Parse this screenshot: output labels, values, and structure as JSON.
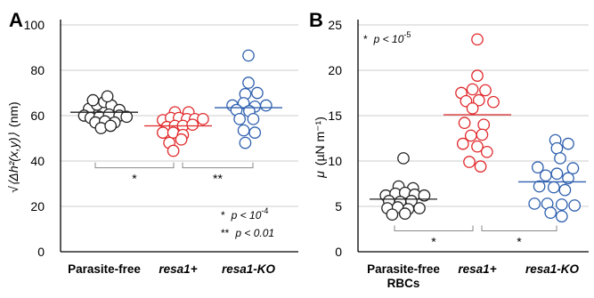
{
  "colors": {
    "black": "#222222",
    "red": "#e0282b",
    "blue": "#2e5fae",
    "grid": "#bbbbbb",
    "bracket": "#8a8a8a"
  },
  "chart_data": [
    {
      "type": "scatter",
      "panel": "A",
      "ylabel_text": "(nm)",
      "ylabel_math": "√⟨Δh²(x,y)⟩",
      "ylim": [
        0,
        100
      ],
      "yticks": [
        "0",
        "20",
        "40",
        "60",
        "80",
        "100"
      ],
      "categories": [
        "Parasite-free RBCs",
        "resa1+",
        "resa1-KO"
      ],
      "category_lines": [
        [
          "Parasite-free"
        ],
        [
          "resa1+"
        ],
        [
          "resa1-KO"
        ]
      ],
      "series": [
        {
          "category": "Parasite-free RBCs",
          "color": "black",
          "mean": 61.5,
          "points": [
            [
              -0.19,
              63.0
            ],
            [
              -0.09,
              64.8
            ],
            [
              0.0,
              66.0
            ],
            [
              0.09,
              64.5
            ],
            [
              0.19,
              62.5
            ],
            [
              -0.14,
              66.8
            ],
            [
              0.04,
              68.5
            ],
            [
              -0.25,
              60.0
            ],
            [
              -0.17,
              59.0
            ],
            [
              -0.06,
              59.5
            ],
            [
              0.06,
              60.5
            ],
            [
              0.19,
              60.0
            ],
            [
              0.28,
              59.5
            ],
            [
              -0.11,
              57.0
            ],
            [
              0.01,
              57.5
            ],
            [
              0.13,
              57.0
            ],
            [
              -0.04,
              54.5
            ],
            [
              0.08,
              55.5
            ]
          ]
        },
        {
          "category": "resa1+",
          "color": "red",
          "mean": 55.5,
          "points": [
            [
              -0.04,
              61.5
            ],
            [
              0.13,
              61.5
            ],
            [
              -0.19,
              58.0
            ],
            [
              -0.09,
              59.0
            ],
            [
              0.01,
              59.0
            ],
            [
              0.11,
              58.5
            ],
            [
              0.21,
              58.5
            ],
            [
              0.31,
              58.5
            ],
            [
              -0.14,
              55.0
            ],
            [
              -0.04,
              55.5
            ],
            [
              0.06,
              55.5
            ],
            [
              0.18,
              56.0
            ],
            [
              -0.19,
              52.5
            ],
            [
              -0.06,
              52.5
            ],
            [
              0.06,
              51.5
            ],
            [
              -0.11,
              48.0
            ],
            [
              0.04,
              49.5
            ],
            [
              -0.06,
              44.5
            ]
          ]
        },
        {
          "category": "resa1-KO",
          "color": "blue",
          "mean": 63.5,
          "points": [
            [
              0.0,
              86.5
            ],
            [
              0.0,
              74.5
            ],
            [
              -0.04,
              69.5
            ],
            [
              0.11,
              70.0
            ],
            [
              -0.2,
              64.5
            ],
            [
              -0.06,
              65.5
            ],
            [
              0.08,
              64.0
            ],
            [
              0.22,
              64.5
            ],
            [
              -0.15,
              62.5
            ],
            [
              0.01,
              62.0
            ],
            [
              -0.11,
              58.5
            ],
            [
              0.06,
              58.5
            ],
            [
              -0.06,
              53.5
            ],
            [
              0.08,
              52.5
            ],
            [
              -0.04,
              48.0
            ]
          ]
        }
      ],
      "brackets": [
        {
          "from": 0,
          "to": 1,
          "y": 37.0,
          "label": "*"
        },
        {
          "from": 1,
          "to": 2,
          "y": 37.0,
          "label": "**"
        }
      ],
      "notes": [
        {
          "prefix": "*",
          "text": "p < 10",
          "sup": "-4"
        },
        {
          "prefix": "**",
          "text": "p < 0.01",
          "sup": ""
        }
      ]
    },
    {
      "type": "scatter",
      "panel": "B",
      "ylabel_text": "(µN m⁻¹)",
      "ylabel_math": "μ",
      "ylim": [
        0,
        25
      ],
      "yticks": [
        "0",
        "5",
        "10",
        "15",
        "20",
        "25"
      ],
      "categories": [
        "Parasite-free RBCs",
        "resa1+",
        "resa1-KO"
      ],
      "category_lines": [
        [
          "Parasite-free",
          "RBCs"
        ],
        [
          "resa1+"
        ],
        [
          "resa1-KO"
        ]
      ],
      "series": [
        {
          "category": "Parasite-free RBCs",
          "color": "black",
          "mean": 5.8,
          "points": [
            [
              0.0,
              10.3
            ],
            [
              -0.06,
              7.2
            ],
            [
              0.12,
              7.0
            ],
            [
              -0.22,
              6.2
            ],
            [
              -0.1,
              6.4
            ],
            [
              0.02,
              6.5
            ],
            [
              0.14,
              6.3
            ],
            [
              0.26,
              6.2
            ],
            [
              -0.18,
              5.6
            ],
            [
              -0.04,
              5.5
            ],
            [
              0.1,
              5.6
            ],
            [
              -0.2,
              4.8
            ],
            [
              -0.07,
              4.9
            ],
            [
              0.06,
              4.7
            ],
            [
              0.2,
              4.8
            ],
            [
              -0.14,
              4.1
            ],
            [
              0.02,
              4.2
            ]
          ]
        },
        {
          "category": "resa1+",
          "color": "red",
          "mean": 15.1,
          "points": [
            [
              0.0,
              23.4
            ],
            [
              0.0,
              19.4
            ],
            [
              -0.2,
              17.5
            ],
            [
              -0.06,
              17.9
            ],
            [
              0.1,
              17.8
            ],
            [
              -0.14,
              16.6
            ],
            [
              0.02,
              16.7
            ],
            [
              0.2,
              16.5
            ],
            [
              -0.06,
              15.8
            ],
            [
              -0.16,
              14.2
            ],
            [
              0.08,
              14.0
            ],
            [
              -0.08,
              12.8
            ],
            [
              0.06,
              12.9
            ],
            [
              -0.18,
              11.9
            ],
            [
              0.0,
              11.6
            ],
            [
              0.12,
              11.0
            ],
            [
              -0.1,
              9.9
            ],
            [
              0.04,
              9.4
            ]
          ]
        },
        {
          "category": "resa1-KO",
          "color": "blue",
          "mean": 7.7,
          "points": [
            [
              0.04,
              12.3
            ],
            [
              0.2,
              11.9
            ],
            [
              0.06,
              11.4
            ],
            [
              -0.18,
              9.3
            ],
            [
              0.1,
              10.3
            ],
            [
              0.26,
              9.2
            ],
            [
              -0.08,
              8.4
            ],
            [
              0.06,
              8.6
            ],
            [
              0.2,
              8.1
            ],
            [
              -0.16,
              7.2
            ],
            [
              0.02,
              7.1
            ],
            [
              0.16,
              6.8
            ],
            [
              -0.22,
              5.3
            ],
            [
              -0.06,
              5.3
            ],
            [
              0.12,
              5.2
            ],
            [
              0.28,
              5.1
            ],
            [
              -0.02,
              4.3
            ],
            [
              0.12,
              3.9
            ]
          ]
        }
      ],
      "brackets": [
        {
          "from": 0,
          "to": 1,
          "y": 2.3,
          "label": "*"
        },
        {
          "from": 1,
          "to": 2,
          "y": 2.3,
          "label": "*"
        }
      ],
      "notes": [
        {
          "prefix": "*",
          "text": "p < 10",
          "sup": "-5"
        }
      ]
    }
  ]
}
